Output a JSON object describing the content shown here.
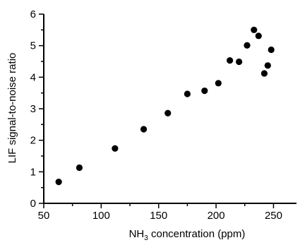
{
  "chart_data": {
    "type": "scatter",
    "title": "",
    "xlabel": {
      "main": "NH",
      "subscript": "3",
      "rest": " concentration (ppm)"
    },
    "ylabel": "LIF signal-to-noise ratio",
    "xlim": [
      50,
      270
    ],
    "ylim": [
      0,
      6
    ],
    "x_ticks": [
      50,
      100,
      150,
      200,
      250
    ],
    "y_ticks": [
      0,
      1,
      2,
      3,
      4,
      5,
      6
    ],
    "grid": false,
    "legend": "none",
    "marker_color": "#000000",
    "x": [
      63,
      81,
      112,
      137,
      158,
      175,
      190,
      202,
      212,
      220,
      227,
      233,
      237,
      242,
      245,
      248
    ],
    "y": [
      0.68,
      1.13,
      1.74,
      2.35,
      2.86,
      3.47,
      3.57,
      3.81,
      4.53,
      4.49,
      5.01,
      5.5,
      5.31,
      4.12,
      4.37,
      4.87
    ]
  }
}
